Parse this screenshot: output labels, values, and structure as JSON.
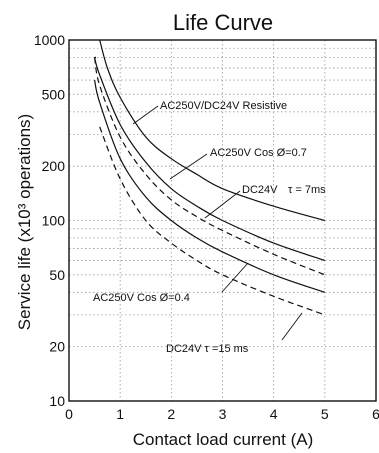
{
  "chart_data": {
    "type": "line",
    "title": "Life Curve",
    "xlabel": "Contact load current (A)",
    "ylabel": "Service life (x10³ operations)",
    "xlim": [
      0,
      6
    ],
    "ylim": [
      10,
      1000
    ],
    "yscale": "log",
    "grid": true,
    "xticks": [
      "0",
      "1",
      "2",
      "3",
      "4",
      "5",
      "6"
    ],
    "yticks": [
      "10",
      "20",
      "50",
      "100",
      "200",
      "500",
      "1000"
    ],
    "series": [
      {
        "name": "AC250V/DC24V Resistive",
        "style": "solid",
        "x": [
          0.6,
          0.75,
          1.0,
          1.5,
          2.0,
          2.5,
          3.0,
          4.0,
          5.0
        ],
        "y": [
          1000,
          700,
          480,
          290,
          220,
          180,
          150,
          120,
          100
        ]
      },
      {
        "name": "AC250V Cos Ø=0.7",
        "style": "solid",
        "x": [
          0.5,
          0.6,
          1.0,
          1.5,
          2.0,
          2.5,
          3.0,
          4.0,
          5.0
        ],
        "y": [
          800,
          640,
          340,
          210,
          150,
          120,
          100,
          75,
          60
        ]
      },
      {
        "name": "DC24V τ = 7ms",
        "style": "dashed",
        "x": [
          0.5,
          0.6,
          1.0,
          1.5,
          2.0,
          2.5,
          3.0,
          4.0,
          5.0
        ],
        "y": [
          800,
          560,
          290,
          180,
          130,
          105,
          88,
          65,
          50
        ]
      },
      {
        "name": "AC250V Cos Ø=0.4",
        "style": "solid",
        "x": [
          0.5,
          0.6,
          1.0,
          1.5,
          2.0,
          2.5,
          3.0,
          4.0,
          5.0
        ],
        "y": [
          600,
          450,
          220,
          135,
          100,
          80,
          67,
          50,
          40
        ]
      },
      {
        "name": "DC24V τ =15 ms",
        "style": "dashed",
        "x": [
          0.6,
          1.0,
          1.5,
          2.0,
          2.5,
          3.0,
          4.0,
          5.0
        ],
        "y": [
          330,
          170,
          100,
          75,
          60,
          50,
          38,
          30
        ]
      }
    ],
    "annotations": [
      {
        "text": "AC250V/DC24V Resistive",
        "series": 0
      },
      {
        "text": "AC250V Cos Ø=0.7",
        "series": 1
      },
      {
        "text": "DC24V",
        "series": 2
      },
      {
        "text": "τ = 7ms",
        "series": 2
      },
      {
        "text": "AC250V Cos Ø=0.4",
        "series": 3
      },
      {
        "text": "DC24V  τ =15 ms",
        "series": 4
      }
    ]
  }
}
